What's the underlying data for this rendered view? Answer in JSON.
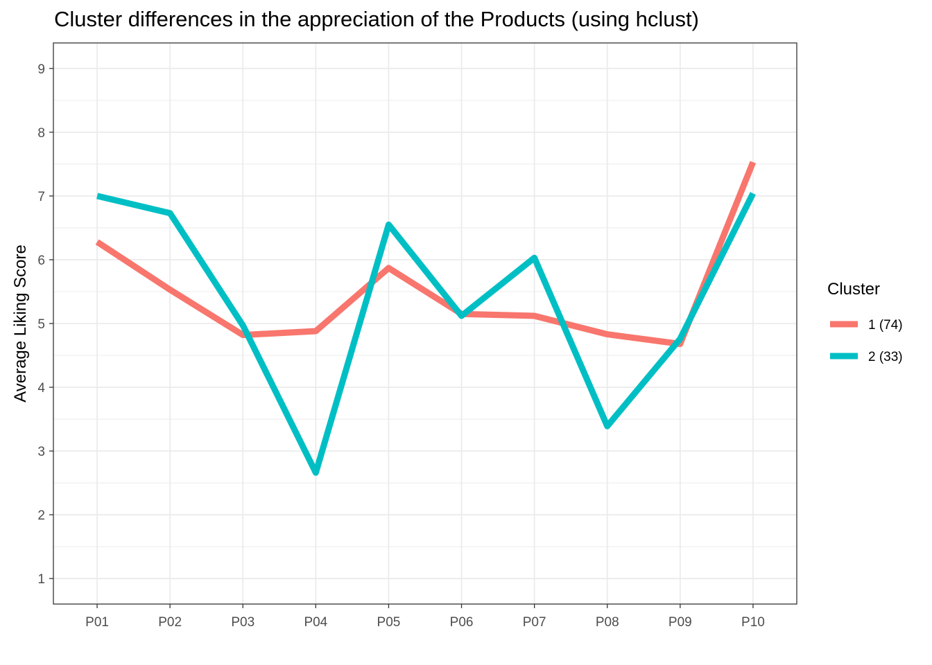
{
  "chart_data": {
    "type": "line",
    "title": "Cluster differences in the appreciation of the Products (using hclust)",
    "xlabel": "",
    "ylabel": "Average Liking Score",
    "categories": [
      "P01",
      "P02",
      "P03",
      "P04",
      "P05",
      "P06",
      "P07",
      "P08",
      "P09",
      "P10"
    ],
    "yticks": [
      "1",
      "2",
      "3",
      "4",
      "5",
      "6",
      "7",
      "8",
      "9"
    ],
    "ylim": [
      0.6,
      9.4
    ],
    "grid": true,
    "legend": {
      "title": "Cluster",
      "position": "right"
    },
    "series": [
      {
        "name": "1 (74)",
        "color": "#F8766D",
        "values": [
          6.28,
          5.53,
          4.82,
          4.88,
          5.87,
          5.15,
          5.12,
          4.83,
          4.68,
          7.53
        ]
      },
      {
        "name": "2 (33)",
        "color": "#00BFC4",
        "values": [
          7.0,
          6.73,
          4.97,
          2.66,
          6.55,
          5.12,
          6.03,
          3.39,
          4.76,
          7.04
        ]
      }
    ]
  }
}
